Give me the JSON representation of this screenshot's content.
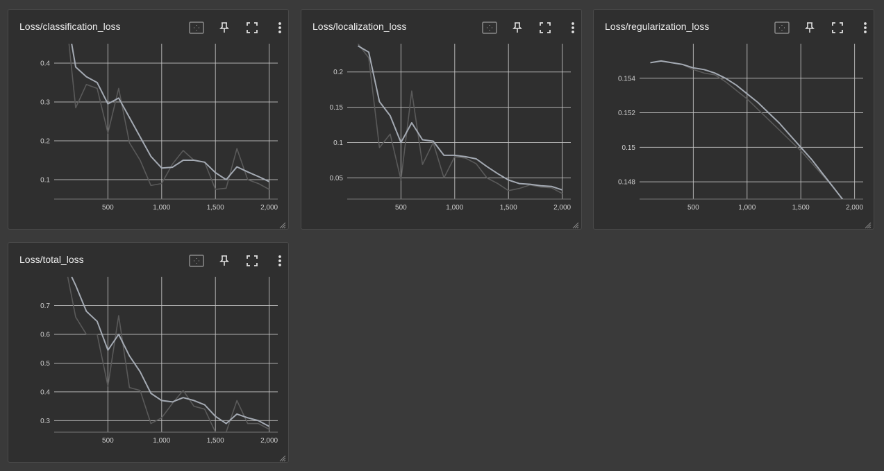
{
  "colors": {
    "background": "#3a3a3a",
    "card": "#2f2f2f",
    "grid": "#c8c8c8",
    "smoothed_line": "#a4aab3",
    "raw_line": "#5a5a5a"
  },
  "toolbar": {
    "icons": [
      "fit-domain-icon",
      "pin-icon",
      "fullscreen-icon",
      "more-vert-icon"
    ]
  },
  "chart_data": [
    {
      "type": "line",
      "title": "Loss/classification_loss",
      "xlabel": "",
      "ylabel": "",
      "xlim": [
        0,
        2080
      ],
      "ylim": [
        0.05,
        0.45
      ],
      "xticks": [
        500,
        1000,
        1500,
        2000
      ],
      "xtick_labels": [
        "500",
        "1,000",
        "1,500",
        "2,000"
      ],
      "yticks": [
        0.1,
        0.2,
        0.3,
        0.4
      ],
      "ytick_labels": [
        "0.1",
        "0.2",
        "0.3",
        "0.4"
      ],
      "grid": true,
      "series": [
        {
          "role": "raw",
          "x": [
            100,
            200,
            300,
            400,
            500,
            600,
            700,
            800,
            900,
            1000,
            1100,
            1200,
            1300,
            1400,
            1500,
            1600,
            1700,
            1800,
            1900,
            2000
          ],
          "values": [
            0.55,
            0.285,
            0.345,
            0.335,
            0.22,
            0.335,
            0.195,
            0.15,
            0.085,
            0.09,
            0.14,
            0.175,
            0.15,
            0.145,
            0.075,
            0.078,
            0.18,
            0.1,
            0.09,
            0.075
          ]
        },
        {
          "role": "smoothed",
          "x": [
            100,
            200,
            300,
            400,
            500,
            600,
            700,
            800,
            900,
            1000,
            1100,
            1200,
            1300,
            1400,
            1500,
            1600,
            1700,
            1800,
            1900,
            2000
          ],
          "values": [
            0.55,
            0.39,
            0.365,
            0.35,
            0.295,
            0.31,
            0.26,
            0.21,
            0.16,
            0.13,
            0.132,
            0.15,
            0.15,
            0.145,
            0.118,
            0.1,
            0.133,
            0.12,
            0.108,
            0.095
          ]
        }
      ]
    },
    {
      "type": "line",
      "title": "Loss/localization_loss",
      "xlabel": "",
      "ylabel": "",
      "xlim": [
        0,
        2080
      ],
      "ylim": [
        0.02,
        0.24
      ],
      "xticks": [
        500,
        1000,
        1500,
        2000
      ],
      "xtick_labels": [
        "500",
        "1,000",
        "1,500",
        "2,000"
      ],
      "yticks": [
        0.05,
        0.1,
        0.15,
        0.2
      ],
      "ytick_labels": [
        "0.05",
        "0.1",
        "0.15",
        "0.2"
      ],
      "grid": true,
      "series": [
        {
          "role": "raw",
          "x": [
            100,
            200,
            300,
            400,
            500,
            600,
            700,
            800,
            900,
            1000,
            1100,
            1200,
            1300,
            1400,
            1500,
            1600,
            1700,
            1800,
            1900,
            2000
          ],
          "values": [
            0.24,
            0.22,
            0.093,
            0.112,
            0.047,
            0.173,
            0.069,
            0.1,
            0.05,
            0.08,
            0.078,
            0.07,
            0.05,
            0.042,
            0.032,
            0.035,
            0.04,
            0.037,
            0.036,
            0.028
          ]
        },
        {
          "role": "smoothed",
          "x": [
            100,
            200,
            300,
            400,
            500,
            600,
            700,
            800,
            900,
            1000,
            1100,
            1200,
            1300,
            1400,
            1500,
            1600,
            1700,
            1800,
            1900,
            2000
          ],
          "values": [
            0.237,
            0.228,
            0.158,
            0.138,
            0.1,
            0.128,
            0.104,
            0.102,
            0.082,
            0.082,
            0.08,
            0.077,
            0.066,
            0.056,
            0.047,
            0.042,
            0.041,
            0.039,
            0.038,
            0.033
          ]
        }
      ]
    },
    {
      "type": "line",
      "title": "Loss/regularization_loss",
      "xlabel": "",
      "ylabel": "",
      "xlim": [
        0,
        2080
      ],
      "ylim": [
        0.147,
        0.156
      ],
      "xticks": [
        500,
        1000,
        1500,
        2000
      ],
      "xtick_labels": [
        "500",
        "1,000",
        "1,500",
        "2,000"
      ],
      "yticks": [
        0.148,
        0.15,
        0.152,
        0.154
      ],
      "ytick_labels": [
        "0.148",
        "0.15",
        "0.152",
        "0.154"
      ],
      "grid": true,
      "series": [
        {
          "role": "raw",
          "x": [
            100,
            200,
            300,
            400,
            500,
            600,
            700,
            800,
            900,
            1000,
            1100,
            1200,
            1300,
            1400,
            1500,
            1600,
            1700,
            1800,
            1900,
            2000
          ],
          "values": [
            0.1549,
            0.155,
            0.1549,
            0.1548,
            0.1545,
            0.1543,
            0.1542,
            0.1538,
            0.1533,
            0.1528,
            0.1522,
            0.1516,
            0.151,
            0.1504,
            0.1498,
            0.1491,
            0.1484,
            0.1477,
            0.1469,
            0.1462
          ]
        },
        {
          "role": "smoothed",
          "x": [
            100,
            200,
            300,
            400,
            500,
            600,
            700,
            800,
            900,
            1000,
            1100,
            1200,
            1300,
            1400,
            1500,
            1600,
            1700,
            1800,
            1900,
            2000
          ],
          "values": [
            0.1549,
            0.155,
            0.1549,
            0.1548,
            0.1546,
            0.1545,
            0.1543,
            0.154,
            0.1536,
            0.1531,
            0.1526,
            0.152,
            0.1514,
            0.1507,
            0.15,
            0.1493,
            0.1485,
            0.1477,
            0.1469,
            0.146
          ]
        }
      ]
    },
    {
      "type": "line",
      "title": "Loss/total_loss",
      "xlabel": "",
      "ylabel": "",
      "xlim": [
        0,
        2080
      ],
      "ylim": [
        0.26,
        0.8
      ],
      "xticks": [
        500,
        1000,
        1500,
        2000
      ],
      "xtick_labels": [
        "500",
        "1,000",
        "1,500",
        "2,000"
      ],
      "yticks": [
        0.3,
        0.4,
        0.5,
        0.6,
        0.7
      ],
      "ytick_labels": [
        "0.3",
        "0.4",
        "0.5",
        "0.6",
        "0.7"
      ],
      "grid": true,
      "series": [
        {
          "role": "raw",
          "x": [
            100,
            200,
            300,
            400,
            500,
            600,
            700,
            800,
            900,
            1000,
            1100,
            1200,
            1300,
            1400,
            1500,
            1600,
            1700,
            1800,
            1900,
            2000
          ],
          "values": [
            0.85,
            0.66,
            0.6,
            0.6,
            0.42,
            0.665,
            0.415,
            0.405,
            0.29,
            0.31,
            0.36,
            0.405,
            0.35,
            0.34,
            0.26,
            0.26,
            0.37,
            0.29,
            0.29,
            0.27
          ]
        },
        {
          "role": "smoothed",
          "x": [
            100,
            200,
            300,
            400,
            500,
            600,
            700,
            800,
            900,
            1000,
            1100,
            1200,
            1300,
            1400,
            1500,
            1600,
            1700,
            1800,
            1900,
            2000
          ],
          "values": [
            0.85,
            0.77,
            0.68,
            0.645,
            0.545,
            0.6,
            0.525,
            0.47,
            0.395,
            0.37,
            0.365,
            0.38,
            0.37,
            0.355,
            0.315,
            0.29,
            0.323,
            0.31,
            0.3,
            0.28
          ]
        }
      ]
    }
  ]
}
